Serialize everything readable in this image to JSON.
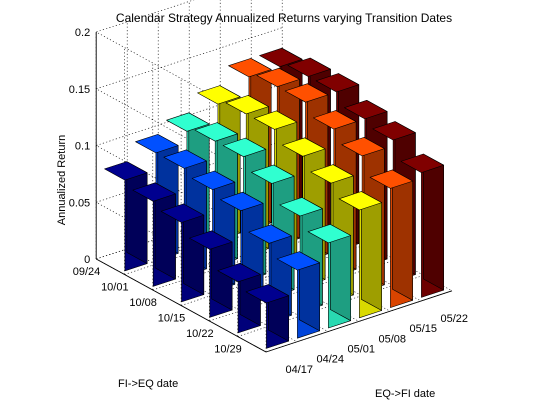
{
  "chart_data": {
    "type": "bar3d",
    "title": "Calendar Strategy Annualized Returns varying Transition Dates",
    "zlabel": "Annualized Return",
    "xlabel": "FI->EQ date",
    "ylabel": "EQ->FI date",
    "zlim": [
      0,
      0.2
    ],
    "zticks": [
      "0",
      "0.05",
      "0.1",
      "0.15",
      "0.2"
    ],
    "grid": true,
    "fi_eq_dates": [
      "09/24",
      "10/01",
      "10/08",
      "10/15",
      "10/22",
      "10/29"
    ],
    "eq_fi_dates": [
      "04/17",
      "04/24",
      "05/01",
      "05/08",
      "05/15",
      "05/22"
    ],
    "values": [
      [
        0.08,
        0.095,
        0.105,
        0.12,
        0.135,
        0.135
      ],
      [
        0.075,
        0.095,
        0.11,
        0.125,
        0.14,
        0.14
      ],
      [
        0.07,
        0.09,
        0.11,
        0.125,
        0.14,
        0.14
      ],
      [
        0.06,
        0.085,
        0.1,
        0.115,
        0.13,
        0.13
      ],
      [
        0.045,
        0.07,
        0.085,
        0.105,
        0.12,
        0.125
      ],
      [
        0.04,
        0.06,
        0.075,
        0.095,
        0.105,
        0.11
      ]
    ],
    "colormap": [
      "#00008F",
      "#0050FF",
      "#30FFD0",
      "#FFFF00",
      "#FF5000",
      "#800000"
    ]
  }
}
